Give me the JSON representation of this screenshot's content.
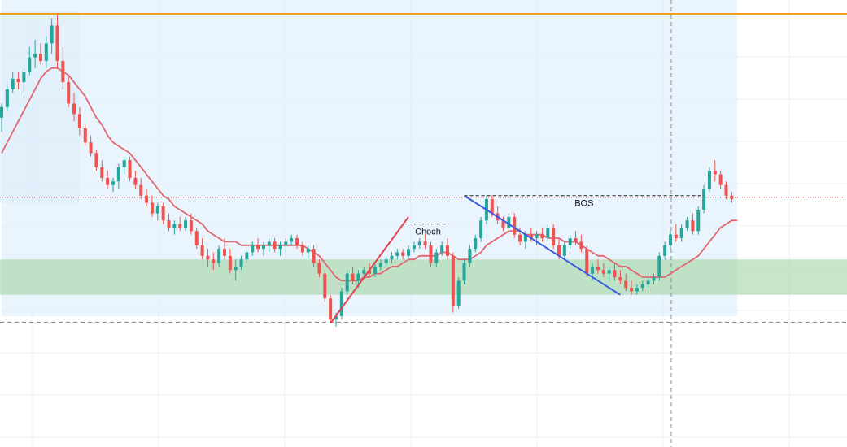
{
  "colors": {
    "background": "#ffffff",
    "grid": "#eef0f3",
    "up": "#26a69a",
    "down": "#ef5350",
    "ma": "#e06670",
    "zone_blue": "#ddeefc",
    "zone_green": "#a5d6a7",
    "resistance": "#f59c1a",
    "current_price": "#e04848",
    "support_dash": "#7d7f85",
    "crosshair": "#8a8c92",
    "trend_up": "#e0414f",
    "trend_down": "#3b5be0",
    "structure": "#222222"
  },
  "chart_data": {
    "type": "candlestick",
    "ylim": [
      0,
      100
    ],
    "grid": true,
    "candles": [
      [
        70,
        74,
        66,
        73
      ],
      [
        73,
        79,
        72,
        78
      ],
      [
        78,
        83,
        77,
        81
      ],
      [
        81,
        83,
        78,
        80
      ],
      [
        80,
        84,
        77,
        83
      ],
      [
        83,
        90,
        82,
        87
      ],
      [
        87,
        92,
        84,
        88
      ],
      [
        88,
        91,
        85,
        86
      ],
      [
        86,
        93,
        84,
        91
      ],
      [
        91,
        98,
        88,
        96
      ],
      [
        96,
        99,
        84,
        86
      ],
      [
        86,
        90,
        78,
        80
      ],
      [
        80,
        82,
        73,
        74
      ],
      [
        74,
        77,
        69,
        71
      ],
      [
        71,
        73,
        65,
        67
      ],
      [
        67,
        68,
        62,
        63
      ],
      [
        63,
        65,
        59,
        60
      ],
      [
        60,
        61,
        55,
        56
      ],
      [
        56,
        58,
        52,
        53
      ],
      [
        53,
        55,
        50,
        51
      ],
      [
        51,
        53,
        49,
        52
      ],
      [
        52,
        57,
        50,
        56
      ],
      [
        56,
        59,
        54,
        58
      ],
      [
        58,
        59,
        52,
        53
      ],
      [
        53,
        55,
        50,
        51
      ],
      [
        51,
        53,
        47,
        48
      ],
      [
        48,
        50,
        45,
        46
      ],
      [
        46,
        48,
        42,
        43
      ],
      [
        43,
        46,
        41,
        45
      ],
      [
        45,
        46,
        40,
        41
      ],
      [
        41,
        43,
        38,
        39
      ],
      [
        39,
        41,
        37,
        40
      ],
      [
        40,
        42,
        38,
        39
      ],
      [
        39,
        42,
        38,
        41
      ],
      [
        41,
        43,
        37,
        38
      ],
      [
        38,
        39,
        33,
        34
      ],
      [
        34,
        36,
        30,
        31
      ],
      [
        31,
        33,
        28,
        30
      ],
      [
        30,
        32,
        27,
        29
      ],
      [
        29,
        34,
        28,
        33
      ],
      [
        33,
        36,
        30,
        31
      ],
      [
        31,
        33,
        26,
        27
      ],
      [
        27,
        30,
        24,
        28
      ],
      [
        28,
        31,
        27,
        30
      ],
      [
        30,
        33,
        29,
        32
      ],
      [
        32,
        35,
        31,
        34
      ],
      [
        34,
        36,
        32,
        33
      ],
      [
        33,
        35,
        31,
        34
      ],
      [
        34,
        36,
        32,
        35
      ],
      [
        35,
        36,
        32,
        33
      ],
      [
        33,
        35,
        31,
        34
      ],
      [
        34,
        36,
        32,
        35
      ],
      [
        35,
        37,
        34,
        36
      ],
      [
        36,
        37,
        33,
        34
      ],
      [
        34,
        35,
        31,
        32
      ],
      [
        32,
        34,
        30,
        33
      ],
      [
        33,
        34,
        28,
        29
      ],
      [
        29,
        30,
        25,
        26
      ],
      [
        26,
        27,
        18,
        19
      ],
      [
        19,
        20,
        12,
        13
      ],
      [
        13,
        15,
        11,
        14
      ],
      [
        14,
        22,
        13,
        21
      ],
      [
        21,
        27,
        20,
        26
      ],
      [
        26,
        28,
        23,
        24
      ],
      [
        24,
        27,
        22,
        26
      ],
      [
        26,
        28,
        25,
        27
      ],
      [
        27,
        29,
        25,
        26
      ],
      [
        26,
        29,
        25,
        28
      ],
      [
        28,
        30,
        27,
        29
      ],
      [
        29,
        31,
        28,
        30
      ],
      [
        30,
        32,
        29,
        31
      ],
      [
        31,
        33,
        30,
        32
      ],
      [
        32,
        33,
        30,
        31
      ],
      [
        31,
        34,
        30,
        33
      ],
      [
        33,
        35,
        32,
        34
      ],
      [
        34,
        36,
        33,
        35
      ],
      [
        35,
        37,
        33,
        34
      ],
      [
        34,
        35,
        28,
        29
      ],
      [
        29,
        33,
        28,
        32
      ],
      [
        32,
        35,
        31,
        34
      ],
      [
        34,
        36,
        30,
        31
      ],
      [
        31,
        32,
        15,
        17
      ],
      [
        17,
        25,
        16,
        24
      ],
      [
        24,
        30,
        23,
        29
      ],
      [
        29,
        34,
        28,
        33
      ],
      [
        33,
        37,
        32,
        36
      ],
      [
        36,
        42,
        35,
        41
      ],
      [
        41,
        48,
        40,
        47
      ],
      [
        47,
        48,
        42,
        43
      ],
      [
        43,
        45,
        40,
        41
      ],
      [
        41,
        42,
        38,
        39
      ],
      [
        39,
        43,
        38,
        42
      ],
      [
        42,
        43,
        36,
        37
      ],
      [
        37,
        39,
        34,
        35
      ],
      [
        35,
        38,
        33,
        37
      ],
      [
        37,
        39,
        35,
        36
      ],
      [
        36,
        38,
        34,
        37
      ],
      [
        37,
        39,
        35,
        36
      ],
      [
        36,
        40,
        35,
        39
      ],
      [
        39,
        40,
        33,
        34
      ],
      [
        34,
        36,
        30,
        31
      ],
      [
        31,
        35,
        30,
        34
      ],
      [
        34,
        37,
        33,
        36
      ],
      [
        36,
        38,
        34,
        35
      ],
      [
        35,
        37,
        32,
        33
      ],
      [
        33,
        34,
        25,
        26
      ],
      [
        26,
        29,
        24,
        28
      ],
      [
        28,
        30,
        26,
        27
      ],
      [
        27,
        29,
        25,
        26
      ],
      [
        26,
        28,
        24,
        27
      ],
      [
        27,
        29,
        24,
        25
      ],
      [
        25,
        27,
        23,
        24
      ],
      [
        24,
        26,
        21,
        22
      ],
      [
        22,
        24,
        20,
        21
      ],
      [
        21,
        23,
        20,
        22
      ],
      [
        22,
        24,
        21,
        23
      ],
      [
        23,
        25,
        22,
        24
      ],
      [
        24,
        26,
        23,
        25
      ],
      [
        25,
        32,
        24,
        31
      ],
      [
        31,
        35,
        30,
        34
      ],
      [
        34,
        38,
        33,
        37
      ],
      [
        37,
        40,
        35,
        36
      ],
      [
        36,
        40,
        35,
        39
      ],
      [
        39,
        42,
        38,
        41
      ],
      [
        41,
        43,
        37,
        38
      ],
      [
        38,
        45,
        37,
        44
      ],
      [
        44,
        51,
        43,
        50
      ],
      [
        50,
        56,
        49,
        55
      ],
      [
        55,
        58,
        52,
        54
      ],
      [
        54,
        55,
        50,
        51
      ],
      [
        51,
        52,
        47,
        48
      ],
      [
        48,
        49,
        46,
        47
      ]
    ],
    "ma": [
      60,
      63,
      66,
      69,
      72,
      75,
      78,
      81,
      83,
      84,
      84,
      83,
      82,
      80,
      78,
      76,
      73,
      70,
      68,
      65,
      63,
      62,
      61,
      60,
      58,
      56,
      54,
      52,
      50,
      48,
      47,
      45,
      44,
      43,
      42,
      41,
      40,
      38,
      37,
      36,
      35,
      35,
      35,
      34,
      34,
      34,
      34,
      34,
      34,
      34,
      34,
      34,
      34,
      34,
      34,
      33,
      32,
      31,
      29,
      27,
      25,
      24,
      24,
      24,
      24,
      25,
      25,
      26,
      26,
      27,
      28,
      28,
      29,
      30,
      30,
      31,
      31,
      31,
      31,
      32,
      32,
      31,
      30,
      30,
      30,
      31,
      32,
      34,
      35,
      36,
      37,
      38,
      38,
      38,
      37,
      37,
      37,
      37,
      36,
      36,
      36,
      35,
      35,
      35,
      34,
      33,
      32,
      31,
      31,
      30,
      29,
      28,
      28,
      27,
      26,
      25,
      25,
      25,
      25,
      25,
      26,
      27,
      28,
      29,
      30,
      31,
      33,
      35,
      37,
      39,
      40,
      41,
      41
    ],
    "zones": [
      {
        "kind": "blue",
        "from": 0,
        "to": 132,
        "y1": 14,
        "y2": 110
      },
      {
        "kind": "blue",
        "from": -2,
        "to": 14,
        "y1": 46,
        "y2": 100
      },
      {
        "kind": "green",
        "from": -2,
        "to": 140,
        "y1": 20,
        "y2": 30
      }
    ],
    "resistance_level": 103,
    "support_level": 13,
    "current_price_level": 47.5,
    "crosshair_index": 120,
    "trendlines": [
      {
        "kind": "up",
        "from": [
          59,
          12
        ],
        "to": [
          73,
          42
        ]
      },
      {
        "kind": "down",
        "from": [
          83,
          48
        ],
        "to": [
          111,
          20
        ]
      }
    ],
    "structure_breaks": [
      {
        "label": "Choch",
        "from": 73,
        "to": 80,
        "level": 40
      },
      {
        "label": "BOS",
        "from": 83,
        "to": 126,
        "level": 48
      }
    ]
  }
}
